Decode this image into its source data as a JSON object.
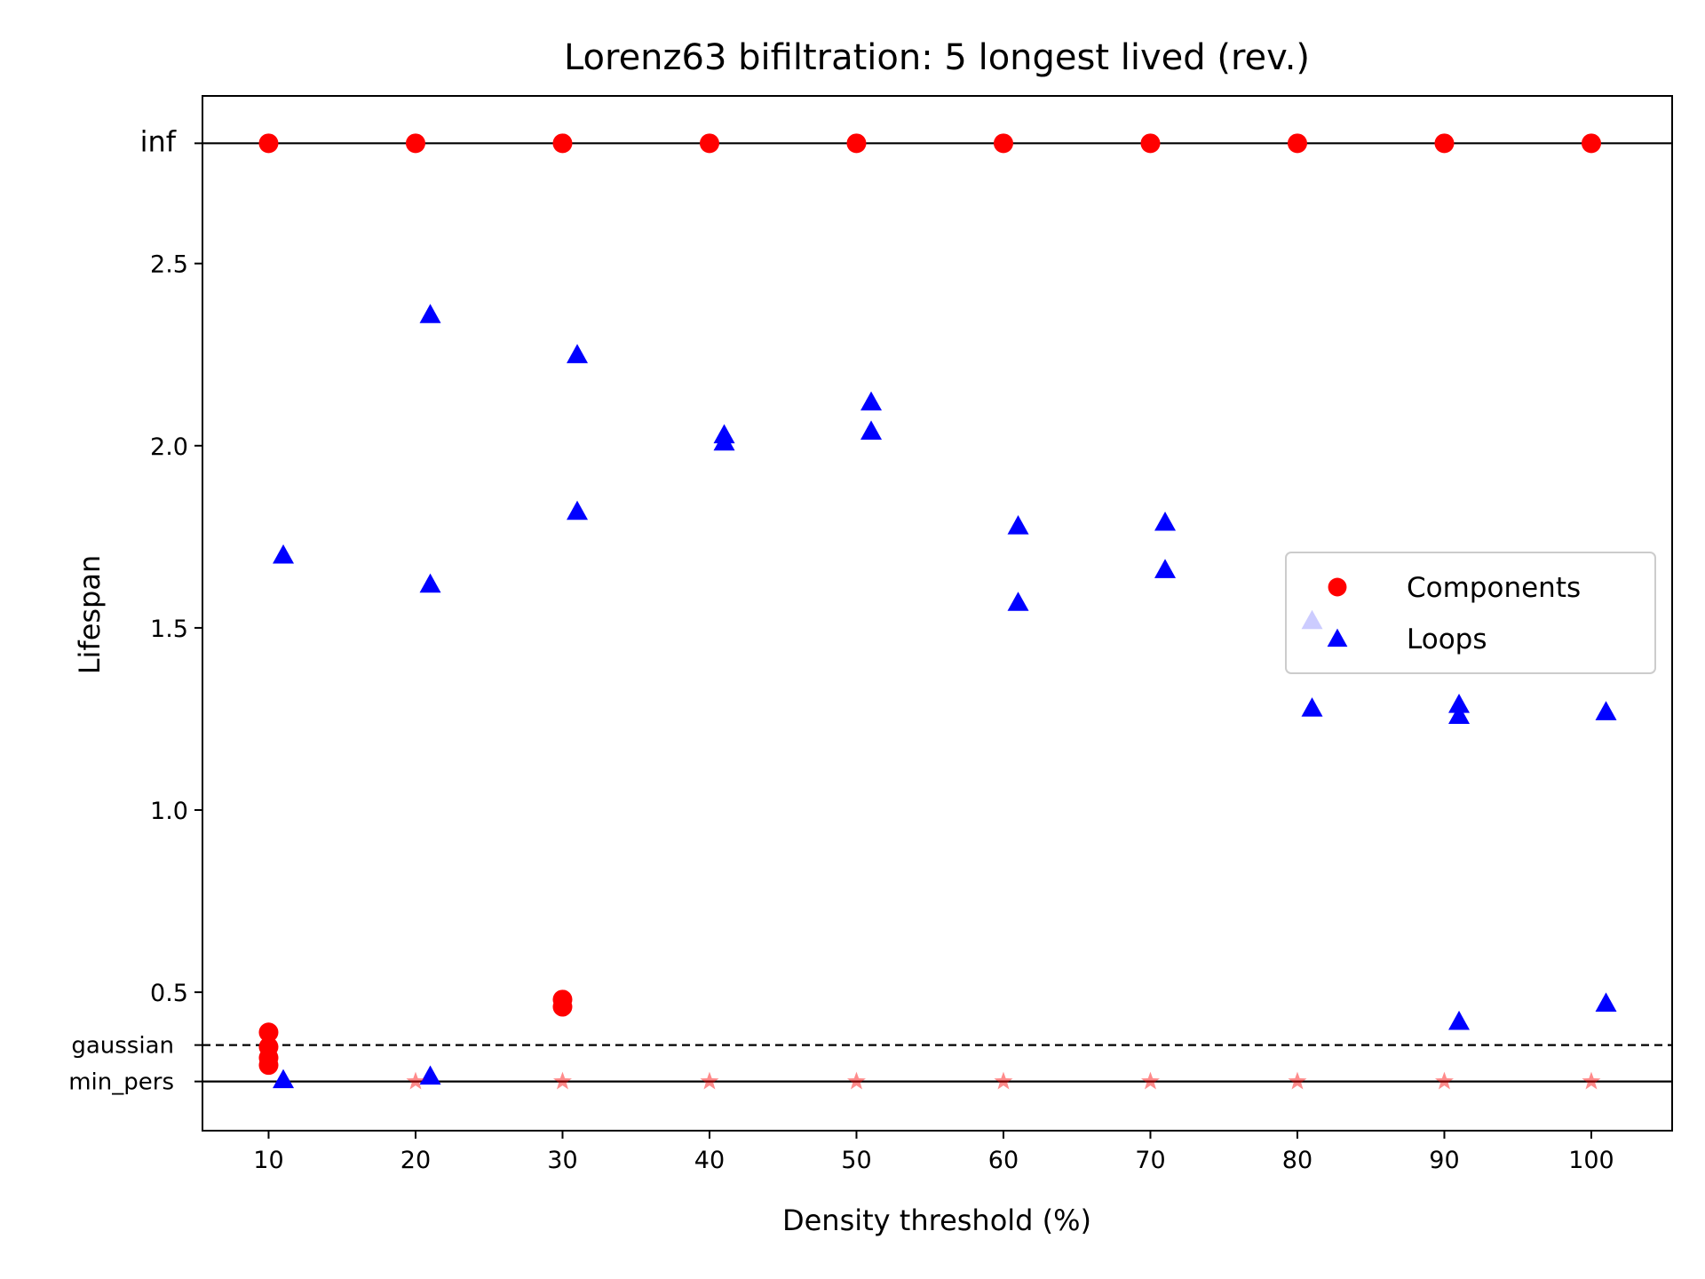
{
  "chart_data": {
    "type": "scatter",
    "title": "Lorenz63 bifiltration: 5 longest lived (rev.)",
    "xlabel": "Density threshold (%)",
    "ylabel": "Lifespan",
    "xlim": [
      5.5,
      105.5
    ],
    "ylim": [
      0.12,
      2.96
    ],
    "grid": false,
    "legend_position": "center-right",
    "x_ticks": [
      10,
      20,
      30,
      40,
      50,
      60,
      70,
      80,
      90,
      100
    ],
    "x_tick_labels": [
      "10",
      "20",
      "30",
      "40",
      "50",
      "60",
      "70",
      "80",
      "90",
      "100"
    ],
    "y_ticks": [
      0.5,
      1.0,
      1.5,
      2.0,
      2.5
    ],
    "y_tick_labels": [
      "0.5",
      "1.0",
      "1.5",
      "2.0",
      "2.5"
    ],
    "reference_lines": [
      {
        "label": "inf",
        "y": 2.83,
        "style": "solid"
      },
      {
        "label": "gaussian",
        "y": 0.355,
        "style": "dashed"
      },
      {
        "label": "min_pers",
        "y": 0.255,
        "style": "solid"
      }
    ],
    "series": [
      {
        "name": "Components",
        "marker": "circle",
        "color": "#ff0000",
        "points": [
          [
            10,
            2.83
          ],
          [
            20,
            2.83
          ],
          [
            30,
            2.83
          ],
          [
            40,
            2.83
          ],
          [
            50,
            2.83
          ],
          [
            60,
            2.83
          ],
          [
            70,
            2.83
          ],
          [
            80,
            2.83
          ],
          [
            90,
            2.83
          ],
          [
            100,
            2.83
          ],
          [
            10,
            0.39
          ],
          [
            10,
            0.35
          ],
          [
            10,
            0.32
          ],
          [
            10,
            0.3
          ],
          [
            30,
            0.48
          ],
          [
            30,
            0.46
          ]
        ]
      },
      {
        "name": "Loops",
        "marker": "triangle",
        "color": "#0000ff",
        "points": [
          [
            11,
            1.7
          ],
          [
            11,
            0.26
          ],
          [
            21,
            2.36
          ],
          [
            21,
            1.62
          ],
          [
            21,
            0.27
          ],
          [
            31,
            2.25
          ],
          [
            31,
            1.82
          ],
          [
            41,
            2.03
          ],
          [
            41,
            2.01
          ],
          [
            51,
            2.12
          ],
          [
            51,
            2.04
          ],
          [
            61,
            1.78
          ],
          [
            61,
            1.57
          ],
          [
            71,
            1.79
          ],
          [
            71,
            1.66
          ],
          [
            81,
            1.52
          ],
          [
            81,
            1.28
          ],
          [
            91,
            1.29
          ],
          [
            91,
            1.26
          ],
          [
            91,
            0.42
          ],
          [
            101,
            1.27
          ],
          [
            101,
            0.47
          ]
        ]
      },
      {
        "marker": "star",
        "color": "#ff0000",
        "opacity": 0.45,
        "points": [
          [
            20,
            0.255
          ],
          [
            30,
            0.255
          ],
          [
            40,
            0.255
          ],
          [
            50,
            0.255
          ],
          [
            60,
            0.255
          ],
          [
            70,
            0.255
          ],
          [
            80,
            0.255
          ],
          [
            90,
            0.255
          ],
          [
            100,
            0.255
          ]
        ]
      }
    ]
  }
}
